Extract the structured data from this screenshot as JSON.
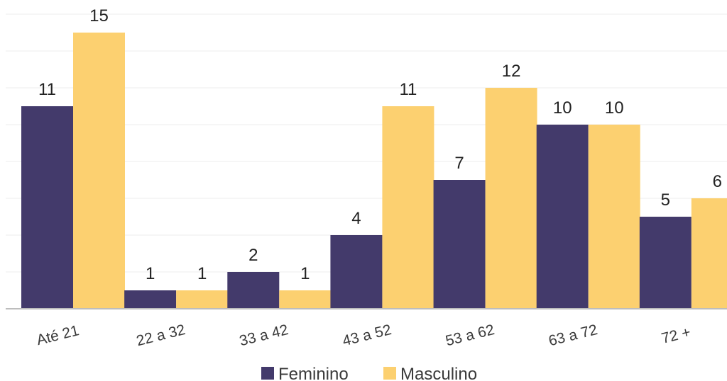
{
  "chart_data": {
    "type": "bar",
    "categories": [
      "Até 21",
      "22 a 32",
      "33 a 42",
      "43 a 52",
      "53 a 62",
      "63 a 72",
      "72 +"
    ],
    "series": [
      {
        "name": "Feminino",
        "values": [
          11,
          1,
          2,
          4,
          7,
          10,
          5
        ],
        "color": "#433a6b"
      },
      {
        "name": "Masculino",
        "values": [
          15,
          1,
          1,
          11,
          12,
          10,
          6
        ],
        "color": "#fcd070"
      }
    ],
    "ylim": [
      0,
      16
    ],
    "grid": true,
    "legend": "bottom",
    "data_labels": true
  }
}
